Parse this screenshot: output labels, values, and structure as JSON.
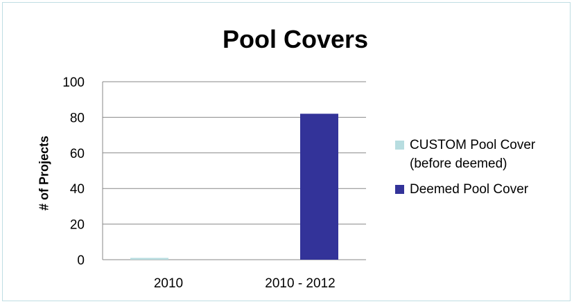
{
  "chart_data": {
    "type": "bar",
    "title": "Pool Covers",
    "xlabel": "",
    "ylabel": "# of Projects",
    "categories": [
      "2010",
      "2010 - 2012"
    ],
    "ylim": [
      0,
      100
    ],
    "yticks": [
      "0",
      "20",
      "40",
      "60",
      "80",
      "100"
    ],
    "grid": true,
    "legend_position": "right",
    "series": [
      {
        "name": "CUSTOM Pool Cover (before deemed)",
        "name_lines": [
          "CUSTOM Pool Cover",
          "(before deemed)"
        ],
        "values": [
          1,
          0
        ],
        "color": "#b7dde0"
      },
      {
        "name": "Deemed Pool Cover",
        "name_lines": [
          "Deemed Pool Cover"
        ],
        "values": [
          0,
          82
        ],
        "color": "#333399"
      }
    ]
  }
}
